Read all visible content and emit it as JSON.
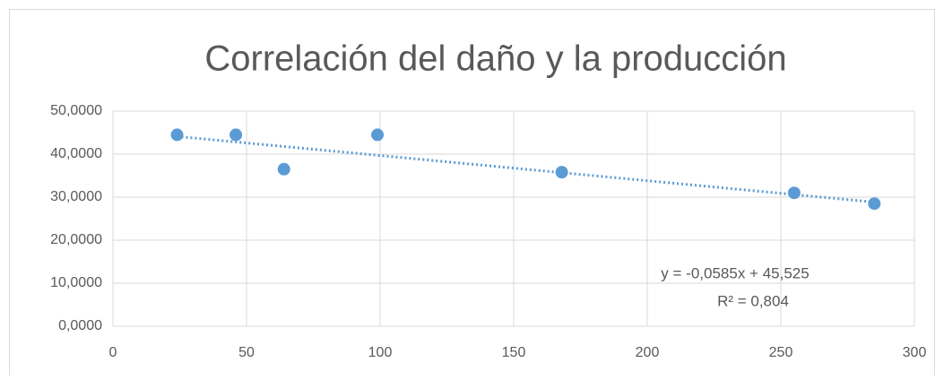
{
  "chart_data": {
    "type": "scatter",
    "title": "Correlación del daño y la producción",
    "x": [
      24,
      46,
      64,
      99,
      168,
      255,
      285
    ],
    "values": [
      44.5,
      44.5,
      36.5,
      44.5,
      35.8,
      31.0,
      28.5
    ],
    "color": "#5b9bd5",
    "xlim": [
      0,
      300
    ],
    "xticks": [
      0,
      50,
      100,
      150,
      200,
      250,
      300
    ],
    "ylim": [
      0,
      50
    ],
    "yticks": [
      {
        "value": 0,
        "label": "0,0000"
      },
      {
        "value": 10,
        "label": "10,0000"
      },
      {
        "value": 20,
        "label": "20,0000"
      },
      {
        "value": 30,
        "label": "30,0000"
      },
      {
        "value": 40,
        "label": "40,0000"
      },
      {
        "value": 50,
        "label": "50,0000"
      }
    ],
    "grid": true,
    "trendline": {
      "slope": -0.0585,
      "intercept": 45.525,
      "equation": "y = -0,0585x + 45,525",
      "r2": "R² = 0,804"
    }
  }
}
